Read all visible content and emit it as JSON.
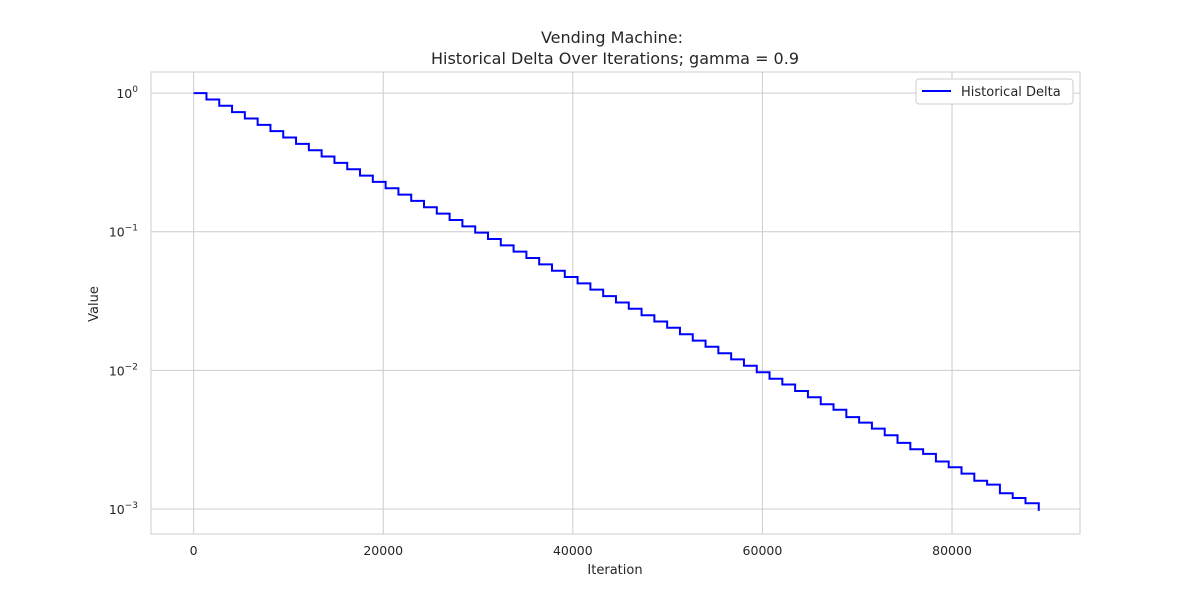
{
  "chart_data": {
    "type": "line",
    "title": "Vending Machine:",
    "subtitle": "Historical Delta Over Iterations; gamma = 0.9",
    "xlabel": "Iteration",
    "ylabel": "Value",
    "yscale": "log",
    "xlim": [
      -4500,
      93500
    ],
    "ylim": [
      0.00066,
      1.42
    ],
    "grid": true,
    "legend_position": "top-right",
    "x_ticks": [
      0,
      20000,
      40000,
      60000,
      80000
    ],
    "x_tick_labels": [
      "0",
      "20000",
      "40000",
      "60000",
      "80000"
    ],
    "y_ticks": [
      1,
      0.1,
      0.01,
      0.001
    ],
    "y_tick_labels": [
      {
        "base": "10",
        "exp": "0"
      },
      {
        "base": "10",
        "exp": "−1"
      },
      {
        "base": "10",
        "exp": "−2"
      },
      {
        "base": "10",
        "exp": "−3"
      }
    ],
    "series": [
      {
        "name": "Historical Delta",
        "color": "#0000ff",
        "drawstyle": "steps-post",
        "x": [
          0,
          1350,
          2700,
          4050,
          5400,
          6750,
          8100,
          9450,
          10800,
          12150,
          13500,
          14850,
          16200,
          17550,
          18900,
          20250,
          21600,
          22950,
          24300,
          25650,
          27000,
          28350,
          29700,
          31050,
          32400,
          33750,
          35100,
          36450,
          37800,
          39150,
          40500,
          41850,
          43200,
          44550,
          45900,
          47250,
          48600,
          49950,
          51300,
          52650,
          54000,
          55350,
          56700,
          58050,
          59400,
          60750,
          62100,
          63450,
          64800,
          66150,
          67500,
          68850,
          70200,
          71550,
          72900,
          74250,
          75600,
          76950,
          78300,
          79650,
          81000,
          82350,
          83700,
          85050,
          86400,
          87750,
          89150
        ],
        "y": [
          1.0,
          0.9,
          0.81,
          0.729,
          0.6561,
          0.5905,
          0.5314,
          0.4783,
          0.4305,
          0.3874,
          0.3487,
          0.3138,
          0.2824,
          0.2542,
          0.2288,
          0.2059,
          0.1853,
          0.1668,
          0.1501,
          0.1351,
          0.1216,
          0.1094,
          0.0985,
          0.0886,
          0.0798,
          0.0718,
          0.0646,
          0.0581,
          0.0523,
          0.0471,
          0.0424,
          0.0382,
          0.0343,
          0.0309,
          0.0278,
          0.025,
          0.0225,
          0.0203,
          0.0182,
          0.0164,
          0.0148,
          0.0133,
          0.012,
          0.0108,
          0.0097,
          0.0087,
          0.0079,
          0.0071,
          0.0064,
          0.0057,
          0.0052,
          0.0046,
          0.0042,
          0.0038,
          0.0034,
          0.003,
          0.0027,
          0.0025,
          0.0022,
          0.002,
          0.0018,
          0.0016,
          0.0015,
          0.0013,
          0.0012,
          0.0011,
          0.00097
        ]
      }
    ]
  }
}
